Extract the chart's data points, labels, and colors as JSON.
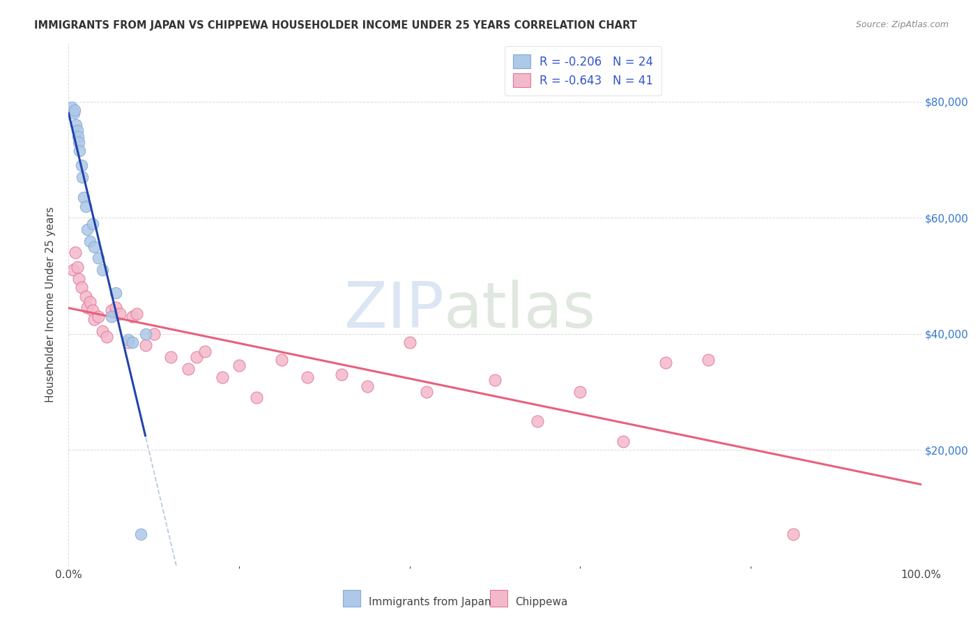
{
  "title": "IMMIGRANTS FROM JAPAN VS CHIPPEWA HOUSEHOLDER INCOME UNDER 25 YEARS CORRELATION CHART",
  "source": "Source: ZipAtlas.com",
  "ylabel": "Householder Income Under 25 years",
  "xtick_left": "0.0%",
  "xtick_right": "100.0%",
  "right_ytick_labels": [
    "$80,000",
    "$60,000",
    "$40,000",
    "$20,000"
  ],
  "right_ytick_values": [
    80000,
    60000,
    40000,
    20000
  ],
  "legend_blue_r": "R = -0.206",
  "legend_blue_n": "N = 24",
  "legend_pink_r": "R = -0.643",
  "legend_pink_n": "N = 41",
  "legend_blue_label": "Immigrants from Japan",
  "legend_pink_label": "Chippewa",
  "bg_color": "#ffffff",
  "grid_color": "#d8d8d8",
  "blue_fill": "#adc8e8",
  "blue_edge": "#85aad4",
  "pink_fill": "#f4b8cb",
  "pink_edge": "#e07898",
  "blue_line_color": "#2244aa",
  "pink_line_color": "#e8607a",
  "blue_dash_color": "#b0c0d8",
  "japan_x": [
    0.4,
    0.6,
    0.7,
    0.9,
    1.0,
    1.1,
    1.2,
    1.3,
    1.5,
    1.6,
    1.8,
    2.0,
    2.2,
    2.5,
    2.8,
    3.0,
    3.5,
    4.0,
    5.0,
    5.5,
    7.0,
    7.5,
    8.5,
    9.0
  ],
  "japan_y": [
    79000,
    78000,
    78500,
    76000,
    75000,
    74000,
    73000,
    71500,
    69000,
    67000,
    63500,
    62000,
    58000,
    56000,
    59000,
    55000,
    53000,
    51000,
    43000,
    47000,
    39000,
    38500,
    5500,
    40000
  ],
  "chippewa_x": [
    0.5,
    0.8,
    1.0,
    1.2,
    1.5,
    2.0,
    2.2,
    2.5,
    2.8,
    3.0,
    3.5,
    4.0,
    4.5,
    5.0,
    5.5,
    6.0,
    7.0,
    7.5,
    8.0,
    9.0,
    10.0,
    12.0,
    14.0,
    15.0,
    16.0,
    18.0,
    20.0,
    22.0,
    25.0,
    28.0,
    32.0,
    35.0,
    40.0,
    42.0,
    50.0,
    55.0,
    60.0,
    65.0,
    70.0,
    75.0,
    85.0
  ],
  "chippewa_y": [
    51000,
    54000,
    51500,
    49500,
    48000,
    46500,
    44500,
    45500,
    44000,
    42500,
    43000,
    40500,
    39500,
    44000,
    44500,
    43500,
    38500,
    43000,
    43500,
    38000,
    40000,
    36000,
    34000,
    36000,
    37000,
    32500,
    34500,
    29000,
    35500,
    32500,
    33000,
    31000,
    38500,
    30000,
    32000,
    25000,
    30000,
    21500,
    35000,
    35500,
    5500
  ],
  "xmin": 0,
  "xmax": 100,
  "ymin": 0,
  "ymax": 90000,
  "japan_line_xmax": 9.0,
  "chippewa_line_y_at_0": 48000,
  "chippewa_line_y_at_100": 13000
}
